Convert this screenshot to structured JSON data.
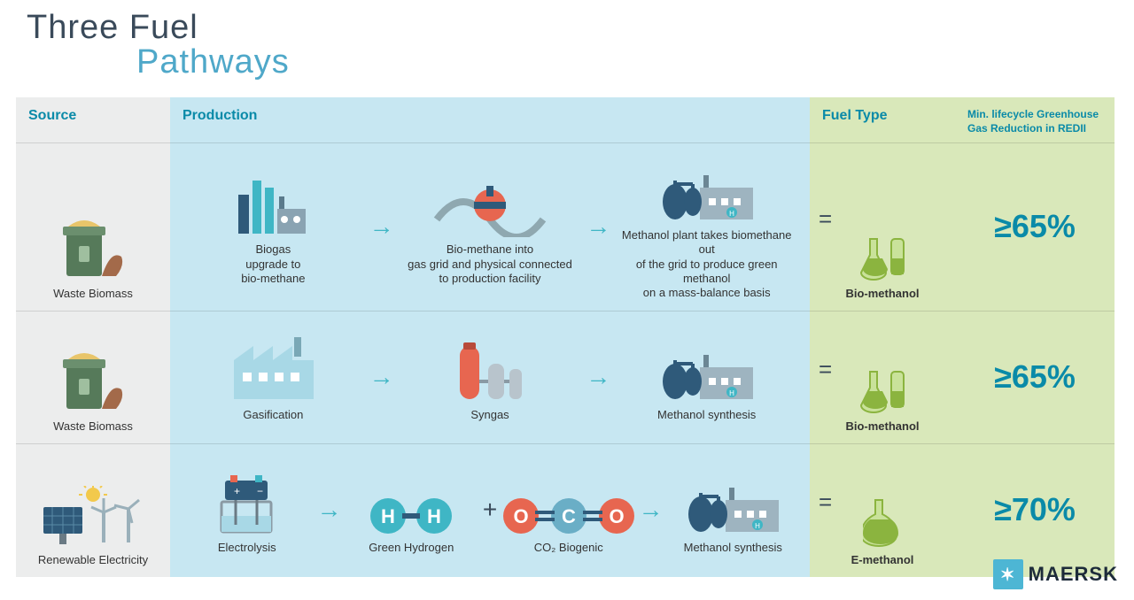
{
  "title": {
    "line1": "Three Fuel",
    "line2": "Pathways"
  },
  "colors": {
    "source_bg": "#eceded",
    "production_bg": "#c7e7f2",
    "fuel_bg": "#d9e8ba",
    "heading_color": "#0a8aa8",
    "arrow_color": "#3fb6c5",
    "title1_color": "#3a4a5a",
    "title2_color": "#4fa8c9",
    "ghg_color": "#0a8aa8",
    "accent_green": "#8bb43f",
    "accent_red": "#e76650",
    "accent_blue": "#3fb6c5",
    "dark_blue": "#2f5a7a"
  },
  "headers": {
    "source": "Source",
    "production": "Production",
    "fuel_type": "Fuel Type",
    "ghg": "Min. lifecycle Greenhouse Gas Reduction in REDII"
  },
  "rows": [
    {
      "source": {
        "label": "Waste Biomass",
        "icon": "waste-biomass"
      },
      "production": [
        {
          "type": "step",
          "icon": "biogas-plant",
          "label": "Biogas\nupgrade to\nbio-methane"
        },
        {
          "type": "arrow"
        },
        {
          "type": "step",
          "icon": "gas-grid",
          "label": "Bio-methane into\ngas grid and physical connected\nto production facility"
        },
        {
          "type": "arrow"
        },
        {
          "type": "step",
          "icon": "methanol-plant",
          "label": "Methanol plant takes biomethane out\nof the grid to produce green methanol\non a mass-balance basis"
        }
      ],
      "fuel": {
        "label": "Bio-methanol",
        "icon": "flasks"
      },
      "ghg": "≥65%"
    },
    {
      "source": {
        "label": "Waste Biomass",
        "icon": "waste-biomass"
      },
      "production": [
        {
          "type": "step",
          "icon": "factory",
          "label": "Gasification"
        },
        {
          "type": "arrow"
        },
        {
          "type": "step",
          "icon": "syngas",
          "label": "Syngas"
        },
        {
          "type": "arrow"
        },
        {
          "type": "step",
          "icon": "methanol-plant",
          "label": "Methanol synthesis"
        }
      ],
      "fuel": {
        "label": "Bio-methanol",
        "icon": "flasks"
      },
      "ghg": "≥65%"
    },
    {
      "source": {
        "label": "Renewable Electricity",
        "icon": "renewable"
      },
      "production": [
        {
          "type": "step",
          "icon": "electrolysis",
          "label": "Electrolysis"
        },
        {
          "type": "arrow"
        },
        {
          "type": "step",
          "icon": "h2",
          "label": "Green Hydrogen"
        },
        {
          "type": "plus"
        },
        {
          "type": "step",
          "icon": "co2",
          "label": "CO₂ Biogenic"
        },
        {
          "type": "arrow"
        },
        {
          "type": "step",
          "icon": "methanol-plant",
          "label": "Methanol synthesis"
        }
      ],
      "fuel": {
        "label": "E-methanol",
        "icon": "flask-single"
      },
      "ghg": "≥70%"
    }
  ],
  "logo": "MAERSK"
}
